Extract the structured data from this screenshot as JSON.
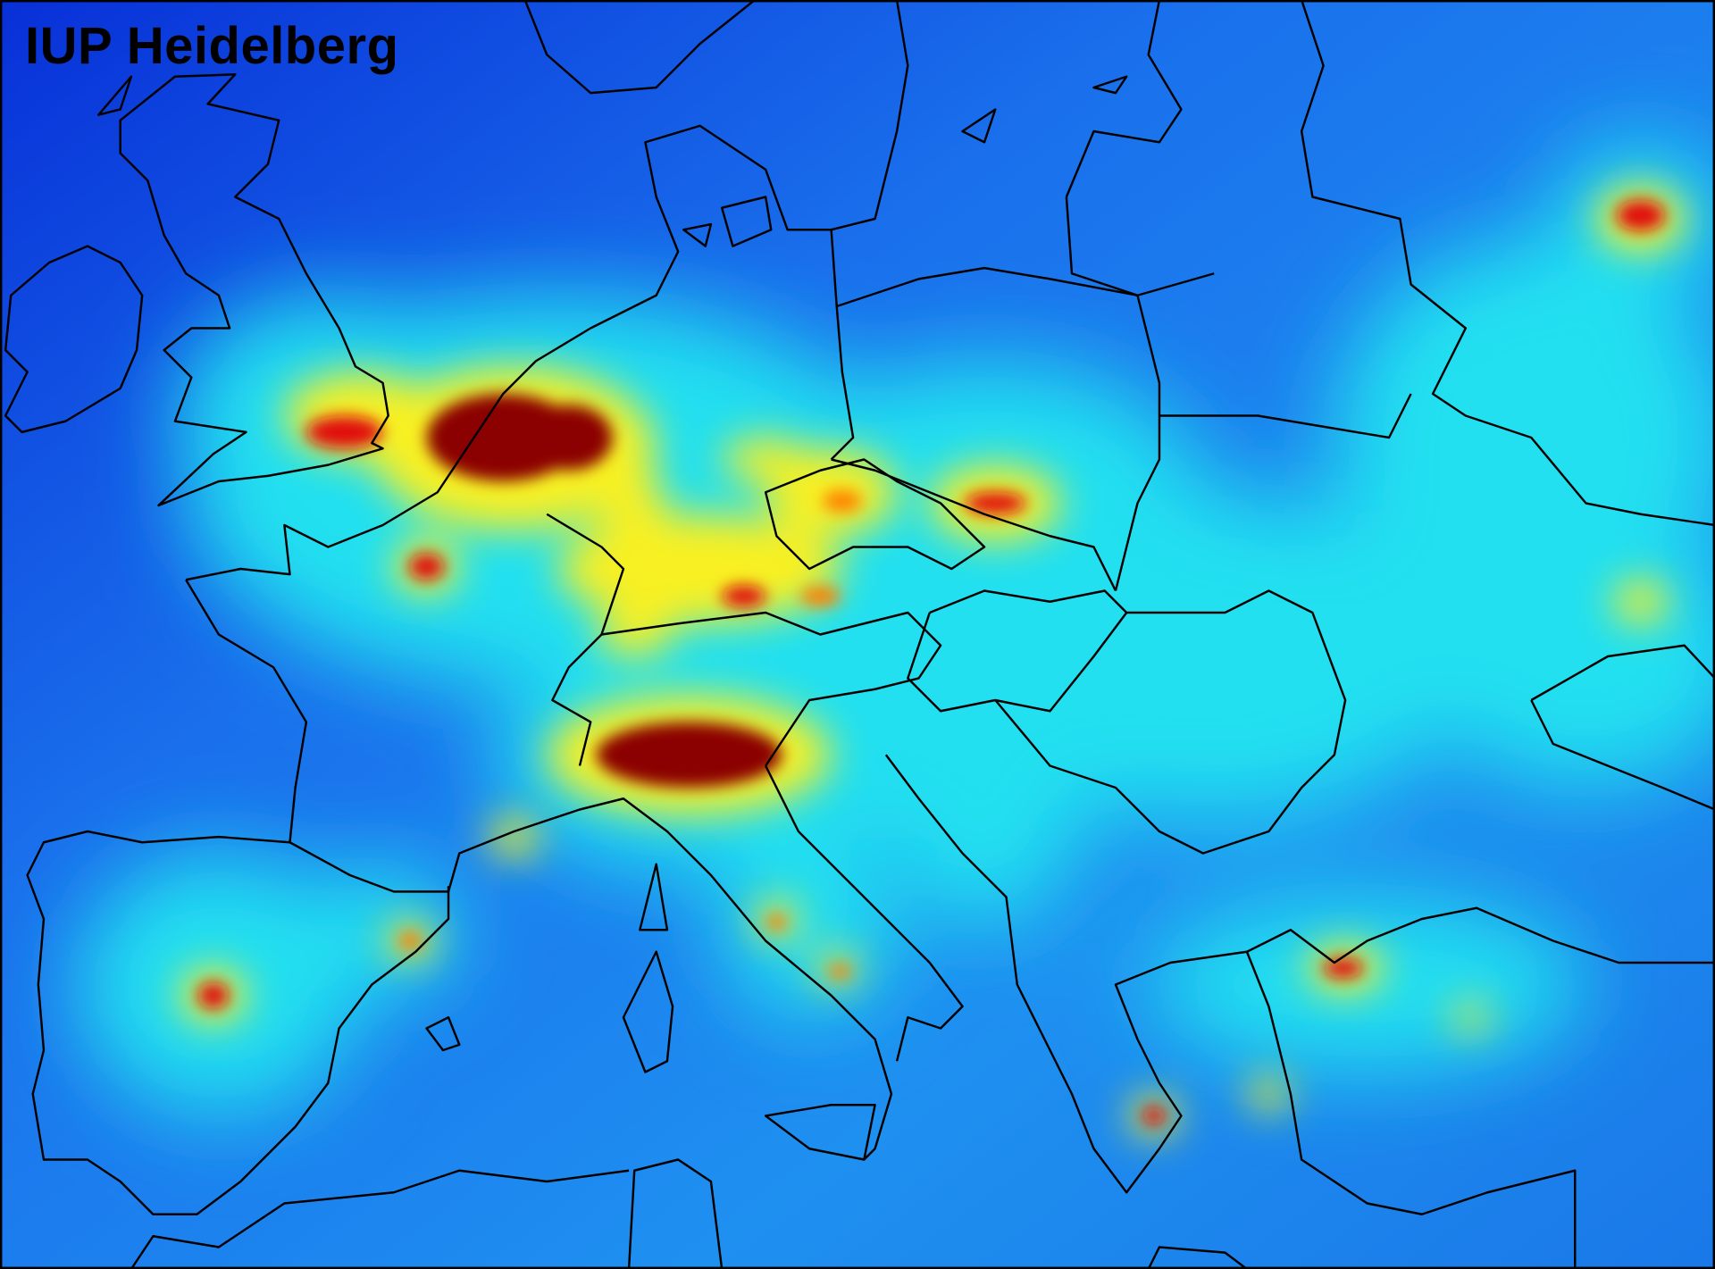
{
  "map": {
    "label": "IUP Heidelberg",
    "colormap": "jet",
    "colors": {
      "background_low": "#0a3fe0",
      "background_mid": "#1e8cf0",
      "cyan": "#20e0f0",
      "yellow": "#f8f020",
      "orange": "#ff8000",
      "red": "#e01010",
      "dark_red": "#8b0000",
      "border": "#000000"
    }
  }
}
